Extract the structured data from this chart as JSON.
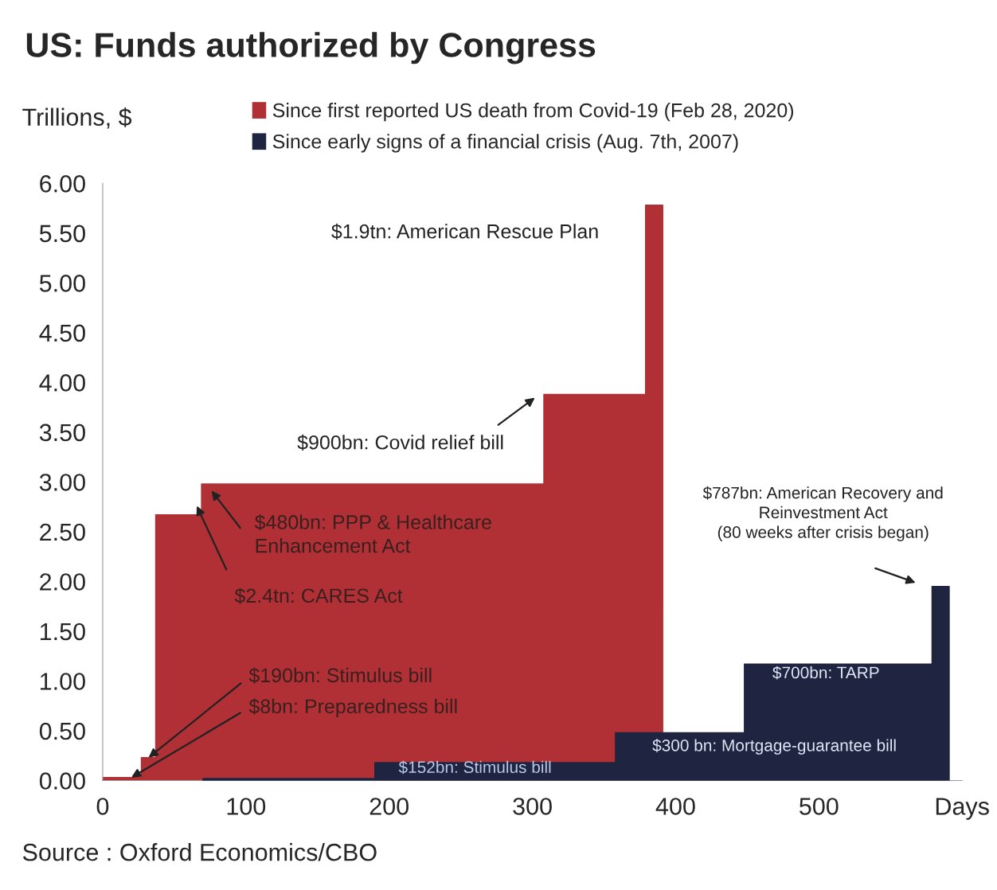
{
  "chart_data": {
    "type": "area",
    "title": "US: Funds authorized by Congress",
    "ylabel": "Trillions, $",
    "series": [
      {
        "name": "Since first reported US death from Covid-19 (Feb 28, 2020)",
        "color": "#b03035",
        "x": [
          0,
          27,
          37,
          69,
          308,
          379,
          391
        ],
        "values": [
          0.03,
          0.23,
          2.67,
          2.98,
          3.88,
          5.78,
          5.78
        ]
      },
      {
        "name": "Since early signs of a financial crisis (Aug. 7th, 2007)",
        "color": "#1f2440",
        "x": [
          70,
          190,
          358,
          448,
          579,
          591
        ],
        "values": [
          0.02,
          0.18,
          0.48,
          1.17,
          1.95,
          1.95
        ]
      }
    ],
    "line_style": "solid",
    "xlim": [
      0,
      600
    ],
    "xticks": [
      0,
      100,
      200,
      300,
      400,
      500,
      {
        "value": 600,
        "label": "Days"
      }
    ],
    "ylim": [
      0,
      6
    ],
    "yticks": [
      {
        "value": 0,
        "label": "0.00"
      },
      {
        "value": 0.5,
        "label": "0.50"
      },
      {
        "value": 1,
        "label": "1.00"
      },
      {
        "value": 1.5,
        "label": "1.50"
      },
      {
        "value": 2,
        "label": "2.00"
      },
      {
        "value": 2.5,
        "label": "2.50"
      },
      {
        "value": 3,
        "label": "3.00"
      },
      {
        "value": 3.5,
        "label": "3.50"
      },
      {
        "value": 4,
        "label": "4.00"
      },
      {
        "value": 4.5,
        "label": "4.50"
      },
      {
        "value": 5,
        "label": "5.00"
      },
      {
        "value": 5.5,
        "label": "5.50"
      },
      {
        "value": 6,
        "label": "6.00"
      }
    ],
    "grid": false,
    "legend": "top",
    "annotations": [
      "$1.9tn: American Rescue Plan",
      "$900bn: Covid relief bill",
      "$480bn: PPP & Healthcare\nEnhancement Act",
      "$2.4tn: CARES Act",
      {
        "text": "$190bn: Stimulus bill",
        "x": 32,
        "y": 0.23
      },
      {
        "text": "$8bn: Preparedness bill",
        "x": 20,
        "y": 0.03
      },
      "$787bn: American Recovery and\nReinvestment Act\n(80 weeks after crisis began)",
      "$700bn: TARP",
      "$300 bn: Mortgage-guarantee bill",
      "$152bn: Stimulus bill",
      "Source : Oxford Economics/CBO"
    ]
  }
}
